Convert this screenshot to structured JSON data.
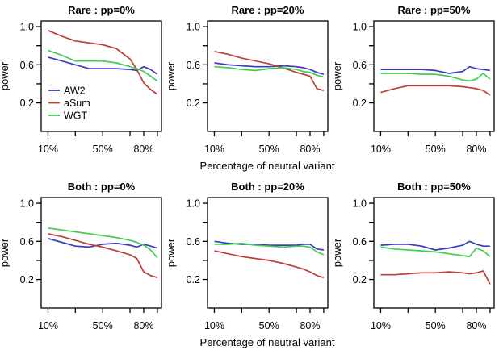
{
  "figure": {
    "x_axis_label": "Percentage of neutral variant",
    "background": "#ffffff",
    "frame_color": "#000000",
    "text_color": "#000000"
  },
  "legend": {
    "position": "lower-left-of-first-panel",
    "items": [
      {
        "label": "AW2",
        "color": "#3a3ac0"
      },
      {
        "label": "aSum",
        "color": "#c03c34"
      },
      {
        "label": "WGT",
        "color": "#41ce50"
      }
    ]
  },
  "axes": {
    "ylabel": "power",
    "xlim": [
      5,
      93
    ],
    "ylim": [
      -0.1,
      1.06
    ],
    "grid": false,
    "x_ticks": [
      {
        "v": 10,
        "label": "10%"
      },
      {
        "v": 30,
        "label": ""
      },
      {
        "v": 50,
        "label": "50%"
      },
      {
        "v": 70,
        "label": ""
      },
      {
        "v": 80,
        "label": "80%"
      },
      {
        "v": 90,
        "label": ""
      }
    ],
    "y_ticks": [
      {
        "v": 0.2,
        "label": "0.2"
      },
      {
        "v": 0.4,
        "label": ""
      },
      {
        "v": 0.6,
        "label": "0.6"
      },
      {
        "v": 0.8,
        "label": ""
      },
      {
        "v": 1.0,
        "label": "1.0"
      }
    ]
  },
  "chart_data": [
    {
      "type": "line",
      "title": "Rare : pp=0%",
      "show_legend": true,
      "x": [
        10,
        20,
        30,
        40,
        50,
        60,
        70,
        75,
        80,
        85,
        90
      ],
      "series": [
        {
          "name": "AW2",
          "values": [
            0.68,
            0.64,
            0.6,
            0.56,
            0.56,
            0.56,
            0.55,
            0.54,
            0.58,
            0.55,
            0.5
          ]
        },
        {
          "name": "aSum",
          "values": [
            0.96,
            0.9,
            0.85,
            0.83,
            0.81,
            0.77,
            0.66,
            0.55,
            0.41,
            0.34,
            0.29
          ]
        },
        {
          "name": "WGT",
          "values": [
            0.75,
            0.7,
            0.64,
            0.64,
            0.64,
            0.62,
            0.58,
            0.56,
            0.53,
            0.48,
            0.43
          ]
        }
      ]
    },
    {
      "type": "line",
      "title": "Rare : pp=20%",
      "show_legend": false,
      "x": [
        10,
        20,
        30,
        40,
        50,
        60,
        70,
        75,
        80,
        85,
        90
      ],
      "series": [
        {
          "name": "AW2",
          "values": [
            0.62,
            0.6,
            0.59,
            0.58,
            0.58,
            0.59,
            0.58,
            0.57,
            0.55,
            0.52,
            0.5
          ]
        },
        {
          "name": "aSum",
          "values": [
            0.74,
            0.71,
            0.67,
            0.64,
            0.61,
            0.57,
            0.52,
            0.5,
            0.48,
            0.35,
            0.33
          ]
        },
        {
          "name": "WGT",
          "values": [
            0.58,
            0.57,
            0.55,
            0.54,
            0.56,
            0.57,
            0.55,
            0.53,
            0.52,
            0.49,
            0.47
          ]
        }
      ]
    },
    {
      "type": "line",
      "title": "Rare : pp=50%",
      "show_legend": false,
      "x": [
        10,
        20,
        30,
        40,
        50,
        60,
        70,
        75,
        80,
        85,
        90
      ],
      "series": [
        {
          "name": "AW2",
          "values": [
            0.55,
            0.55,
            0.55,
            0.55,
            0.54,
            0.51,
            0.53,
            0.58,
            0.56,
            0.55,
            0.54
          ]
        },
        {
          "name": "aSum",
          "values": [
            0.31,
            0.35,
            0.38,
            0.38,
            0.38,
            0.38,
            0.37,
            0.36,
            0.35,
            0.33,
            0.28
          ]
        },
        {
          "name": "WGT",
          "values": [
            0.51,
            0.51,
            0.51,
            0.5,
            0.5,
            0.48,
            0.44,
            0.43,
            0.45,
            0.51,
            0.45
          ]
        }
      ]
    },
    {
      "type": "line",
      "title": "Both : pp=0%",
      "show_legend": false,
      "x": [
        10,
        20,
        30,
        40,
        50,
        60,
        70,
        75,
        80,
        85,
        90
      ],
      "series": [
        {
          "name": "AW2",
          "values": [
            0.63,
            0.59,
            0.55,
            0.54,
            0.57,
            0.58,
            0.56,
            0.54,
            0.57,
            0.55,
            0.53
          ]
        },
        {
          "name": "aSum",
          "values": [
            0.68,
            0.65,
            0.61,
            0.57,
            0.54,
            0.5,
            0.46,
            0.42,
            0.28,
            0.24,
            0.22
          ]
        },
        {
          "name": "WGT",
          "values": [
            0.74,
            0.72,
            0.7,
            0.68,
            0.66,
            0.64,
            0.61,
            0.59,
            0.56,
            0.51,
            0.43
          ]
        }
      ]
    },
    {
      "type": "line",
      "title": "Both : pp=20%",
      "show_legend": false,
      "x": [
        10,
        20,
        30,
        40,
        50,
        60,
        70,
        75,
        80,
        85,
        90
      ],
      "series": [
        {
          "name": "AW2",
          "values": [
            0.6,
            0.58,
            0.57,
            0.57,
            0.56,
            0.56,
            0.56,
            0.57,
            0.57,
            0.52,
            0.51
          ]
        },
        {
          "name": "aSum",
          "values": [
            0.5,
            0.47,
            0.44,
            0.42,
            0.4,
            0.37,
            0.33,
            0.31,
            0.28,
            0.24,
            0.22
          ]
        },
        {
          "name": "WGT",
          "values": [
            0.57,
            0.57,
            0.58,
            0.56,
            0.55,
            0.54,
            0.55,
            0.55,
            0.54,
            0.49,
            0.46
          ]
        }
      ]
    },
    {
      "type": "line",
      "title": "Both : pp=50%",
      "show_legend": false,
      "x": [
        10,
        20,
        30,
        40,
        50,
        60,
        70,
        75,
        80,
        85,
        90
      ],
      "series": [
        {
          "name": "AW2",
          "values": [
            0.56,
            0.57,
            0.57,
            0.55,
            0.51,
            0.53,
            0.56,
            0.6,
            0.57,
            0.55,
            0.55
          ]
        },
        {
          "name": "aSum",
          "values": [
            0.25,
            0.25,
            0.26,
            0.27,
            0.27,
            0.28,
            0.27,
            0.26,
            0.27,
            0.29,
            0.15
          ]
        },
        {
          "name": "WGT",
          "values": [
            0.54,
            0.52,
            0.51,
            0.5,
            0.49,
            0.47,
            0.45,
            0.44,
            0.53,
            0.5,
            0.44
          ]
        }
      ]
    }
  ],
  "rows": [
    {
      "xlabel": "Percentage of neutral variant"
    },
    {
      "xlabel": "Percentage of neutral variant"
    }
  ]
}
